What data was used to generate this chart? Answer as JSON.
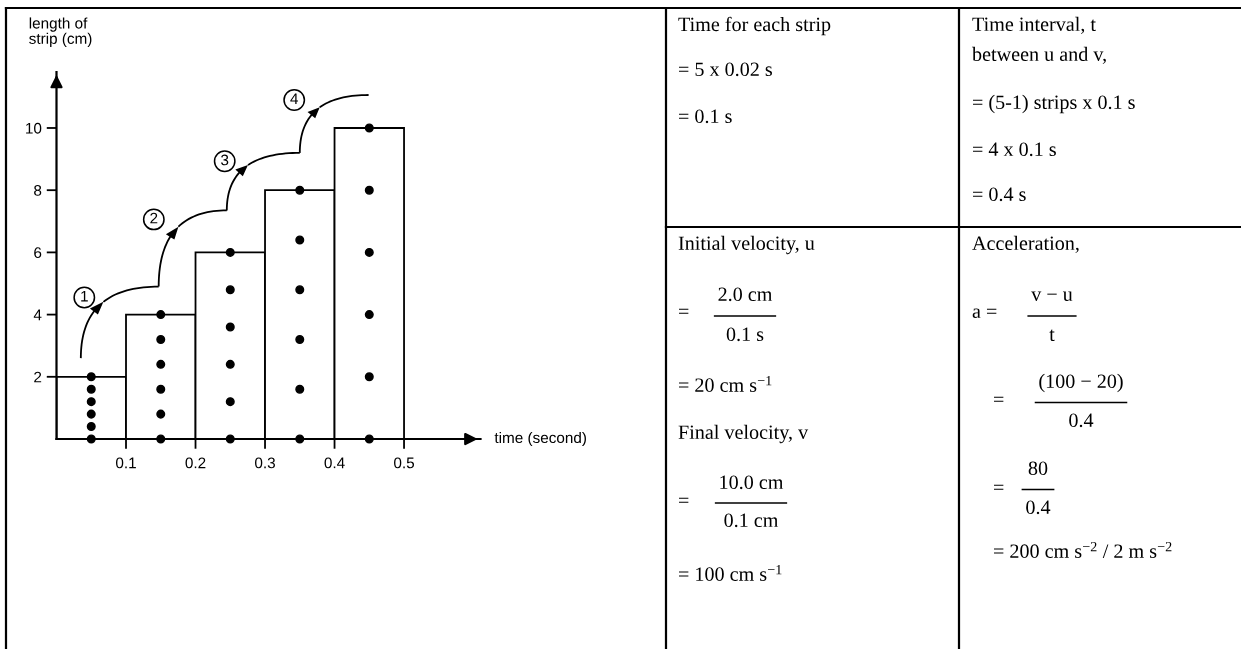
{
  "chart_data": [
    {
      "type": "bar",
      "xlabel": "time (second)",
      "ylabel": "length of\nstrip (cm)",
      "series": [
        {
          "type": "bar",
          "x": [
            0.05,
            0.15,
            0.25,
            0.35,
            0.45
          ],
          "values": [
            2,
            4,
            6,
            8,
            10
          ],
          "color": "#ffffff"
        },
        {
          "type": "scatter",
          "x": [
            0.05,
            0.05,
            0.05,
            0.05,
            0.05,
            0.05,
            0.15,
            0.15,
            0.15,
            0.15,
            0.15,
            0.15,
            0.25,
            0.25,
            0.25,
            0.25,
            0.25,
            0.25,
            0.35,
            0.35,
            0.35,
            0.35,
            0.35,
            0.35,
            0.45,
            0.45,
            0.45,
            0.45,
            0.45,
            0.45
          ],
          "values": [
            0,
            0.4,
            0.8,
            1.2,
            1.6,
            2,
            0,
            0.8,
            1.6,
            2.4,
            3.2,
            4,
            0,
            1.2,
            2.4,
            3.6,
            4.8,
            6,
            0,
            1.6,
            3.2,
            4.8,
            6.4,
            8,
            0,
            2,
            4,
            6,
            8,
            10
          ],
          "color": "#000000"
        }
      ],
      "marker": "circle",
      "xlim": [
        0,
        0.61
      ],
      "ylim": [
        0,
        11.8
      ],
      "xticks": [
        0.1,
        0.2,
        0.3,
        0.4,
        0.5
      ],
      "yticks": [
        2,
        4,
        6,
        8,
        10
      ],
      "grid": false,
      "annotations": [
        {
          "text": "1",
          "x": 0.04,
          "y": 4.55
        },
        {
          "text": "2",
          "x": 0.14,
          "y": 7.06
        },
        {
          "text": "3",
          "x": 0.242,
          "y": 8.93
        },
        {
          "text": "4",
          "x": 0.342,
          "y": 10.9
        }
      ]
    },
    {
      "type": "other",
      "annotations": [
        "Time for each strip",
        "= 5 x 0.02 s",
        "= 0.1 s",
        "Time interval, t",
        "between u and v,",
        "= (5-1) strips x 0.1 s",
        "= 4 x 0.1 s",
        "= 0.4 s",
        "Initial velocity, u",
        "=",
        "2.0 cm",
        "0.1 s",
        "= 20 cm s$^{−1}$",
        "Final velocity, v",
        "=",
        "10.0 cm",
        "0.1 cm",
        "= 100 cm s$^{−1}$",
        "Acceleration,",
        "a =",
        "v − u",
        "t",
        "=",
        "(100 − 20)",
        "0.4",
        "=",
        "80",
        "0.4",
        "= 200 cm s$^{−2}$ / 2 m s$^{−2}$"
      ]
    }
  ]
}
